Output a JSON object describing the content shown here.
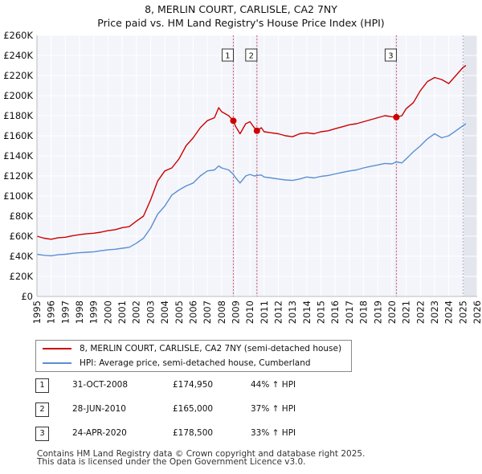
{
  "title_line1": "8, MERLIN COURT, CARLISLE, CA2 7NY",
  "title_line2": "Price paid vs. HM Land Registry's House Price Index (HPI)",
  "chart_data": {
    "type": "line",
    "title": "Price paid vs. HM Land Registry's House Price Index (HPI)",
    "xlabel": "",
    "ylabel": "",
    "xlim": [
      1995,
      2026
    ],
    "ylim": [
      0,
      260000
    ],
    "x_ticks": [
      1995,
      1996,
      1997,
      1998,
      1999,
      2000,
      2001,
      2002,
      2003,
      2004,
      2005,
      2006,
      2007,
      2008,
      2009,
      2010,
      2011,
      2012,
      2013,
      2014,
      2015,
      2016,
      2017,
      2018,
      2019,
      2020,
      2021,
      2022,
      2023,
      2024,
      2025,
      2026
    ],
    "y_ticks": [
      0,
      20000,
      40000,
      60000,
      80000,
      100000,
      120000,
      140000,
      160000,
      180000,
      200000,
      220000,
      240000,
      260000
    ],
    "y_tick_labels": [
      "£0",
      "£20K",
      "£40K",
      "£60K",
      "£80K",
      "£100K",
      "£120K",
      "£140K",
      "£160K",
      "£180K",
      "£200K",
      "£220K",
      "£240K",
      "£260K"
    ],
    "grid": true,
    "shaded_future_from": 2025.0,
    "series": [
      {
        "name": "8, MERLIN COURT, CARLISLE, CA2 7NY (semi-detached house)",
        "color": "#cc0000",
        "x": [
          1995.0,
          1995.5,
          1996.0,
          1996.5,
          1997.0,
          1997.5,
          1998.0,
          1998.5,
          1999.0,
          1999.5,
          2000.0,
          2000.5,
          2001.0,
          2001.5,
          2002.0,
          2002.5,
          2003.0,
          2003.5,
          2004.0,
          2004.5,
          2005.0,
          2005.5,
          2006.0,
          2006.5,
          2007.0,
          2007.5,
          2007.8,
          2008.0,
          2008.5,
          2008.83,
          2009.0,
          2009.3,
          2009.7,
          2010.0,
          2010.3,
          2010.49,
          2010.8,
          2011.0,
          2011.5,
          2012.0,
          2012.5,
          2013.0,
          2013.5,
          2014.0,
          2014.5,
          2015.0,
          2015.5,
          2016.0,
          2016.5,
          2017.0,
          2017.5,
          2018.0,
          2018.5,
          2019.0,
          2019.5,
          2020.0,
          2020.31,
          2020.7,
          2021.0,
          2021.5,
          2022.0,
          2022.5,
          2023.0,
          2023.5,
          2024.0,
          2024.5,
          2025.0,
          2025.2
        ],
        "values": [
          60000,
          58000,
          57000,
          58500,
          59000,
          60500,
          61500,
          62500,
          63000,
          64000,
          65500,
          66500,
          68500,
          69500,
          75000,
          80000,
          96000,
          115000,
          125000,
          128000,
          137000,
          150000,
          158000,
          168000,
          175000,
          178000,
          188000,
          184000,
          180000,
          174950,
          169000,
          162000,
          172000,
          174000,
          168000,
          165000,
          168000,
          164000,
          163000,
          162000,
          160000,
          159000,
          162000,
          163000,
          162000,
          164000,
          165000,
          167000,
          169000,
          171000,
          172000,
          174000,
          176000,
          178000,
          180000,
          179000,
          178500,
          180000,
          187000,
          193000,
          205000,
          214000,
          218000,
          216000,
          212000,
          220000,
          228000,
          230000
        ]
      },
      {
        "name": "HPI: Average price, semi-detached house, Cumberland",
        "color": "#5b8fd1",
        "x": [
          1995.0,
          1995.5,
          1996.0,
          1996.5,
          1997.0,
          1997.5,
          1998.0,
          1998.5,
          1999.0,
          1999.5,
          2000.0,
          2000.5,
          2001.0,
          2001.5,
          2002.0,
          2002.5,
          2003.0,
          2003.5,
          2004.0,
          2004.5,
          2005.0,
          2005.5,
          2006.0,
          2006.5,
          2007.0,
          2007.5,
          2007.8,
          2008.0,
          2008.5,
          2008.83,
          2009.0,
          2009.3,
          2009.7,
          2010.0,
          2010.3,
          2010.49,
          2010.8,
          2011.0,
          2011.5,
          2012.0,
          2012.5,
          2013.0,
          2013.5,
          2014.0,
          2014.5,
          2015.0,
          2015.5,
          2016.0,
          2016.5,
          2017.0,
          2017.5,
          2018.0,
          2018.5,
          2019.0,
          2019.5,
          2020.0,
          2020.31,
          2020.7,
          2021.0,
          2021.5,
          2022.0,
          2022.5,
          2023.0,
          2023.5,
          2024.0,
          2024.5,
          2025.0,
          2025.2
        ],
        "values": [
          42000,
          41000,
          40500,
          41500,
          42000,
          43000,
          43500,
          44000,
          44500,
          45500,
          46500,
          47000,
          48000,
          49000,
          53000,
          58000,
          68000,
          82000,
          90000,
          101000,
          106000,
          110000,
          113000,
          120000,
          125000,
          126000,
          130000,
          128000,
          126000,
          121500,
          118000,
          113000,
          120000,
          121500,
          120000,
          120500,
          121000,
          119000,
          118000,
          117000,
          116000,
          115500,
          117000,
          119000,
          118000,
          119500,
          120500,
          122000,
          123500,
          125000,
          126000,
          128000,
          129500,
          131000,
          132500,
          132000,
          134000,
          133000,
          137000,
          144000,
          150000,
          157000,
          162000,
          158000,
          160000,
          165000,
          170000,
          172000
        ]
      }
    ],
    "annotations": [
      {
        "label": "1",
        "x": 2008.83,
        "value": 174950
      },
      {
        "label": "2",
        "x": 2010.49,
        "value": 165000
      },
      {
        "label": "3",
        "x": 2020.31,
        "value": 178500
      }
    ]
  },
  "legend": [
    {
      "label": "8, MERLIN COURT, CARLISLE, CA2 7NY (semi-detached house)",
      "color": "#cc0000"
    },
    {
      "label": "HPI: Average price, semi-detached house, Cumberland",
      "color": "#5b8fd1"
    }
  ],
  "sales": [
    {
      "num": "1",
      "date": "31-OCT-2008",
      "price": "£174,950",
      "hpi": "44% ↑ HPI"
    },
    {
      "num": "2",
      "date": "28-JUN-2010",
      "price": "£165,000",
      "hpi": "37% ↑ HPI"
    },
    {
      "num": "3",
      "date": "24-APR-2020",
      "price": "£178,500",
      "hpi": "33% ↑ HPI"
    }
  ],
  "footer_line1": "Contains HM Land Registry data © Crown copyright and database right 2025.",
  "footer_line2": "This data is licensed under the Open Government Licence v3.0."
}
